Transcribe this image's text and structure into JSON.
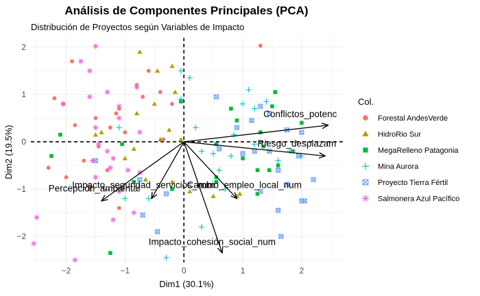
{
  "chart_data": {
    "type": "scatter",
    "title": "Análisis de Componentes Principales (PCA)",
    "subtitle": "Distribución de Proyectos según Variables de Impacto",
    "xlabel": "Dim1 (30.1%)",
    "ylabel": "Dim2 (19.5%)",
    "xlim": [
      -2.6,
      2.7
    ],
    "ylim": [
      -2.55,
      2.2
    ],
    "x_ticks": [
      -2,
      -1,
      0,
      1,
      2
    ],
    "y_ticks": [
      -2,
      -1,
      0,
      1,
      2
    ],
    "grid": true,
    "legend": {
      "title": "Col.",
      "position": "right"
    },
    "series": [
      {
        "name": "Forestal AndesVerde",
        "color": "#F8766D",
        "marker": "circle",
        "points": [
          [
            -2.2,
            0.92
          ],
          [
            -2.05,
            0.8
          ],
          [
            -1.85,
            0.35
          ],
          [
            -1.5,
            0.5
          ],
          [
            -1.25,
            0.3
          ],
          [
            -1.1,
            0.7
          ],
          [
            -1.0,
            0.2
          ],
          [
            -0.8,
            1.2
          ],
          [
            -0.4,
            1.05
          ],
          [
            -0.2,
            0.8
          ],
          [
            -1.3,
            -0.6
          ],
          [
            -1.7,
            -0.4
          ],
          [
            -2.3,
            -0.55
          ],
          [
            -1.15,
            0.6
          ],
          [
            -0.35,
            0.05
          ],
          [
            -1.9,
            1.7
          ],
          [
            -0.7,
            0.95
          ],
          [
            -1.45,
            -0.1
          ],
          [
            -2.0,
            -0.75
          ],
          [
            1.3,
            2.03
          ],
          [
            -1.1,
            -1.4
          ],
          [
            -0.6,
            1.5
          ]
        ]
      },
      {
        "name": "HidroRio Sur",
        "color": "#B79F00",
        "marker": "triangle",
        "points": [
          [
            -0.75,
            1.9
          ],
          [
            -0.45,
            1.5
          ],
          [
            -0.2,
            1.6
          ],
          [
            -0.5,
            0.8
          ],
          [
            -0.25,
            0.25
          ],
          [
            -0.4,
            0.05
          ],
          [
            -0.8,
            0.6
          ],
          [
            -1.0,
            -0.35
          ],
          [
            -1.4,
            0.2
          ],
          [
            -0.85,
            -0.15
          ],
          [
            -0.2,
            -0.85
          ],
          [
            0.1,
            -1.05
          ],
          [
            0.5,
            -1.15
          ],
          [
            0.9,
            -1.15
          ],
          [
            -1.6,
            -1.0
          ],
          [
            -1.5,
            0.15
          ],
          [
            -0.05,
            0.05
          ],
          [
            0.95,
            -1.1
          ],
          [
            -0.15,
            1.05
          ],
          [
            -0.65,
            -0.8
          ]
        ]
      },
      {
        "name": "MegaRelleno Patagonia",
        "color": "#00BA38",
        "marker": "square",
        "points": [
          [
            -2.1,
            0.15
          ],
          [
            -2.25,
            -0.3
          ],
          [
            -1.05,
            -0.05
          ],
          [
            -0.05,
            0.85
          ],
          [
            -1.25,
            -2.35
          ],
          [
            0.55,
            -0.05
          ],
          [
            0.9,
            0.45
          ],
          [
            1.0,
            -0.35
          ],
          [
            1.25,
            -0.6
          ],
          [
            1.35,
            -0.1
          ],
          [
            1.5,
            0.75
          ],
          [
            1.55,
            1.05
          ],
          [
            1.6,
            -0.5
          ],
          [
            1.45,
            -0.6
          ],
          [
            0.55,
            -0.85
          ],
          [
            1.3,
            0.2
          ],
          [
            0.8,
            0.7
          ],
          [
            -0.85,
            -0.85
          ],
          [
            0.55,
            -0.75
          ],
          [
            1.85,
            -0.2
          ],
          [
            1.25,
            -1.1
          ],
          [
            -0.2,
            -1.0
          ],
          [
            2.0,
            0.4
          ]
        ]
      },
      {
        "name": "Mina Aurora",
        "color": "#00BFC4",
        "marker": "plus",
        "points": [
          [
            -0.05,
            1.5
          ],
          [
            0.1,
            1.35
          ],
          [
            -0.05,
            0.9
          ],
          [
            0.2,
            0.3
          ],
          [
            -1.1,
            0.3
          ],
          [
            -1.0,
            -1.2
          ],
          [
            0.3,
            -0.2
          ],
          [
            0.5,
            -0.25
          ],
          [
            0.6,
            -0.6
          ],
          [
            0.7,
            -1.0
          ],
          [
            0.3,
            -1.8
          ],
          [
            -0.3,
            -2.45
          ],
          [
            1.0,
            0.8
          ],
          [
            1.4,
            0.85
          ],
          [
            1.2,
            0.7
          ],
          [
            1.6,
            -0.4
          ],
          [
            2.0,
            -0.3
          ],
          [
            0.8,
            -0.3
          ],
          [
            1.8,
            -0.2
          ],
          [
            -0.6,
            -1.2
          ],
          [
            1.1,
            1.1
          ],
          [
            0.85,
            0.15
          ],
          [
            1.2,
            -0.05
          ]
        ]
      },
      {
        "name": "Proyecto Tierra Fértil",
        "color": "#619CFF",
        "marker": "boxx",
        "points": [
          [
            -1.5,
            -0.4
          ],
          [
            -0.75,
            -0.8
          ],
          [
            -0.3,
            -1.1
          ],
          [
            0.9,
            0.3
          ],
          [
            1.45,
            0.6
          ],
          [
            1.75,
            0.25
          ],
          [
            1.6,
            -0.6
          ],
          [
            1.75,
            -0.9
          ],
          [
            2.2,
            -0.8
          ],
          [
            2.05,
            -1.25
          ],
          [
            1.6,
            -1.45
          ],
          [
            1.65,
            -2.0
          ],
          [
            1.3,
            0.75
          ],
          [
            1.15,
            0.45
          ],
          [
            0.55,
            0.95
          ],
          [
            1.0,
            -0.25
          ],
          [
            2.0,
            0.2
          ],
          [
            -0.45,
            -1.9
          ],
          [
            1.45,
            -0.2
          ],
          [
            1.95,
            -0.3
          ],
          [
            1.3,
            -1.05
          ],
          [
            -0.7,
            -1.55
          ],
          [
            2.0,
            -1.25
          ],
          [
            0.6,
            -0.15
          ],
          [
            1.2,
            -0.2
          ]
        ]
      },
      {
        "name": "Salmonera Azul Pacífico",
        "color": "#F564E3",
        "marker": "asterisk",
        "points": [
          [
            -1.5,
            2.02
          ],
          [
            -1.75,
            1.7
          ],
          [
            -1.6,
            1.5
          ],
          [
            -2.05,
            0.8
          ],
          [
            -1.6,
            0.95
          ],
          [
            -1.3,
            1.05
          ],
          [
            -1.1,
            0.75
          ],
          [
            -1.1,
            0.5
          ],
          [
            -0.8,
            1.15
          ],
          [
            -0.75,
            0.2
          ],
          [
            -1.5,
            0.3
          ],
          [
            -1.45,
            -0.05
          ],
          [
            -1.3,
            -0.2
          ],
          [
            -1.55,
            -0.4
          ],
          [
            -1.2,
            -0.35
          ],
          [
            -1.25,
            -0.55
          ],
          [
            -0.75,
            -0.65
          ],
          [
            -1.5,
            -0.75
          ],
          [
            -1.6,
            -0.95
          ],
          [
            -1.2,
            -1.65
          ],
          [
            -0.85,
            -1.5
          ],
          [
            -2.5,
            -1.6
          ],
          [
            -2.55,
            -2.15
          ],
          [
            -1.85,
            -2.5
          ],
          [
            -0.95,
            -0.6
          ],
          [
            -1.1,
            -1.05
          ]
        ]
      }
    ],
    "variables": [
      {
        "label": "Conflictos_potenc",
        "x": 2.45,
        "y": 0.35,
        "label_x": 1.35,
        "label_y": 0.52
      },
      {
        "label": "Riesgo_desplazam",
        "x": 2.4,
        "y": -0.3,
        "label_x": 1.25,
        "label_y": -0.1
      },
      {
        "label": "Impacto_seguridad_servicios_num",
        "x": -0.55,
        "y": -1.2,
        "label_x": -1.9,
        "label_y": -0.98
      },
      {
        "label": "Percepción_ambiental",
        "x": -1.4,
        "y": -1.25,
        "label_x": -2.3,
        "label_y": -1.05
      },
      {
        "label": "Cambio_empleo_local_num",
        "x": 0.9,
        "y": -1.2,
        "label_x": 0.05,
        "label_y": -0.98
      },
      {
        "label": "Impacto_cohesión_social_num",
        "x": 0.65,
        "y": -2.35,
        "label_x": -0.6,
        "label_y": -2.18
      }
    ]
  }
}
